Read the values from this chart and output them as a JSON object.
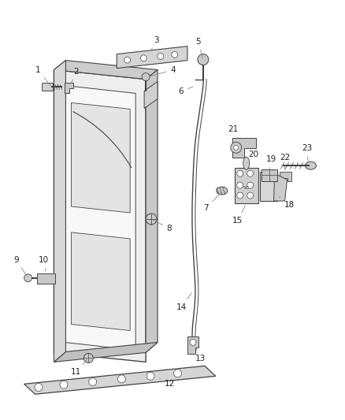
{
  "bg_color": "#ffffff",
  "line_color": "#444444",
  "part_fill": "#d8d8d8",
  "part_fill2": "#e8e8e8",
  "label_color": "#222222",
  "leader_color": "#888888"
}
